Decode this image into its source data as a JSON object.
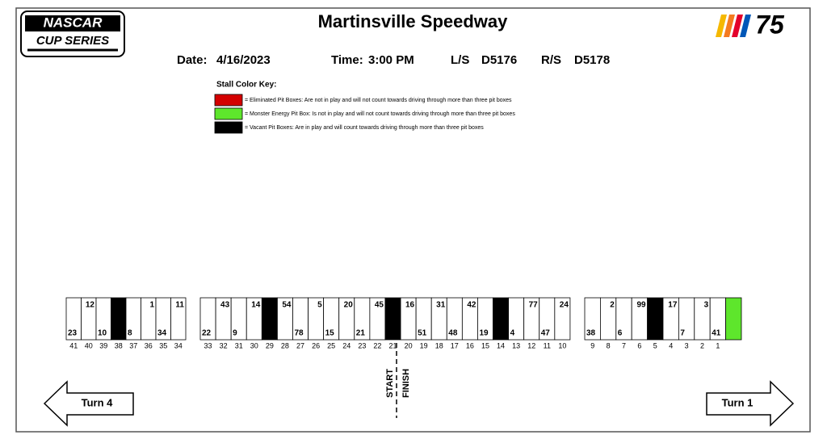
{
  "logo_left": {
    "line1": "NASCAR",
    "line2": "CUP SERIES"
  },
  "logo_right": "75",
  "title": "Martinsville Speedway",
  "info": {
    "date_label": "Date:",
    "date": "4/16/2023",
    "time_label": "Time:",
    "time": "3:00 PM",
    "ls_label": "L/S",
    "ls": "D5176",
    "rs_label": "R/S",
    "rs": "D5178"
  },
  "key": {
    "title": "Stall Color Key:",
    "entries": [
      {
        "status": "eliminated",
        "text": "= Eliminated Pit Boxes:  Are not in play and will not count towards driving through more than three pit boxes"
      },
      {
        "status": "monster",
        "text": "= Monster Energy Pit Box:  Is not in play and will not count towards driving through more than three pit boxes"
      },
      {
        "status": "vacant",
        "text": "= Vacant Pit Boxes:  Are in play and will count towards driving through more than three pit boxes"
      }
    ]
  },
  "groups": [
    [
      {
        "stall": "41",
        "car_bottom": "23"
      },
      {
        "stall": "40",
        "car_top": "12"
      },
      {
        "stall": "39",
        "car_bottom": "10"
      },
      {
        "stall": "38",
        "status": "vacant"
      },
      {
        "stall": "37",
        "car_bottom": "8"
      },
      {
        "stall": "36",
        "car_top": "1"
      },
      {
        "stall": "35",
        "car_bottom": "34"
      },
      {
        "stall": "34",
        "car_top": "11"
      }
    ],
    [
      {
        "stall": "33",
        "car_bottom": "22"
      },
      {
        "stall": "32",
        "car_top": "43"
      },
      {
        "stall": "31",
        "car_bottom": "9"
      },
      {
        "stall": "30",
        "car_top": "14"
      },
      {
        "stall": "29",
        "status": "vacant"
      },
      {
        "stall": "28",
        "car_top": "54"
      },
      {
        "stall": "27",
        "car_bottom": "78"
      },
      {
        "stall": "26",
        "car_top": "5"
      },
      {
        "stall": "25",
        "car_bottom": "15"
      },
      {
        "stall": "24",
        "car_top": "20"
      },
      {
        "stall": "23",
        "car_bottom": "21"
      },
      {
        "stall": "22",
        "car_top": "45"
      },
      {
        "stall": "21",
        "status": "vacant"
      },
      {
        "stall": "20",
        "car_top": "16"
      },
      {
        "stall": "19",
        "car_bottom": "51"
      },
      {
        "stall": "18",
        "car_top": "31"
      },
      {
        "stall": "17",
        "car_bottom": "48"
      },
      {
        "stall": "16",
        "car_top": "42"
      },
      {
        "stall": "15",
        "car_bottom": "19"
      },
      {
        "stall": "14",
        "status": "vacant"
      },
      {
        "stall": "13",
        "car_bottom": "4"
      },
      {
        "stall": "12",
        "car_top": "77"
      },
      {
        "stall": "11",
        "car_bottom": "47"
      },
      {
        "stall": "10",
        "car_top": "24"
      }
    ],
    [
      {
        "stall": "9",
        "car_bottom": "38"
      },
      {
        "stall": "8",
        "car_top": "2"
      },
      {
        "stall": "7",
        "car_bottom": "6"
      },
      {
        "stall": "6",
        "car_top": "99"
      },
      {
        "stall": "5",
        "status": "vacant"
      },
      {
        "stall": "4",
        "car_top": "17"
      },
      {
        "stall": "3",
        "car_bottom": "7"
      },
      {
        "stall": "2",
        "car_top": "3"
      },
      {
        "stall": "1",
        "car_bottom": "41"
      },
      {
        "status": "monster"
      }
    ]
  ],
  "start": "START",
  "finish": "FINISH",
  "turn_left": "Turn 4",
  "turn_right": "Turn 1"
}
